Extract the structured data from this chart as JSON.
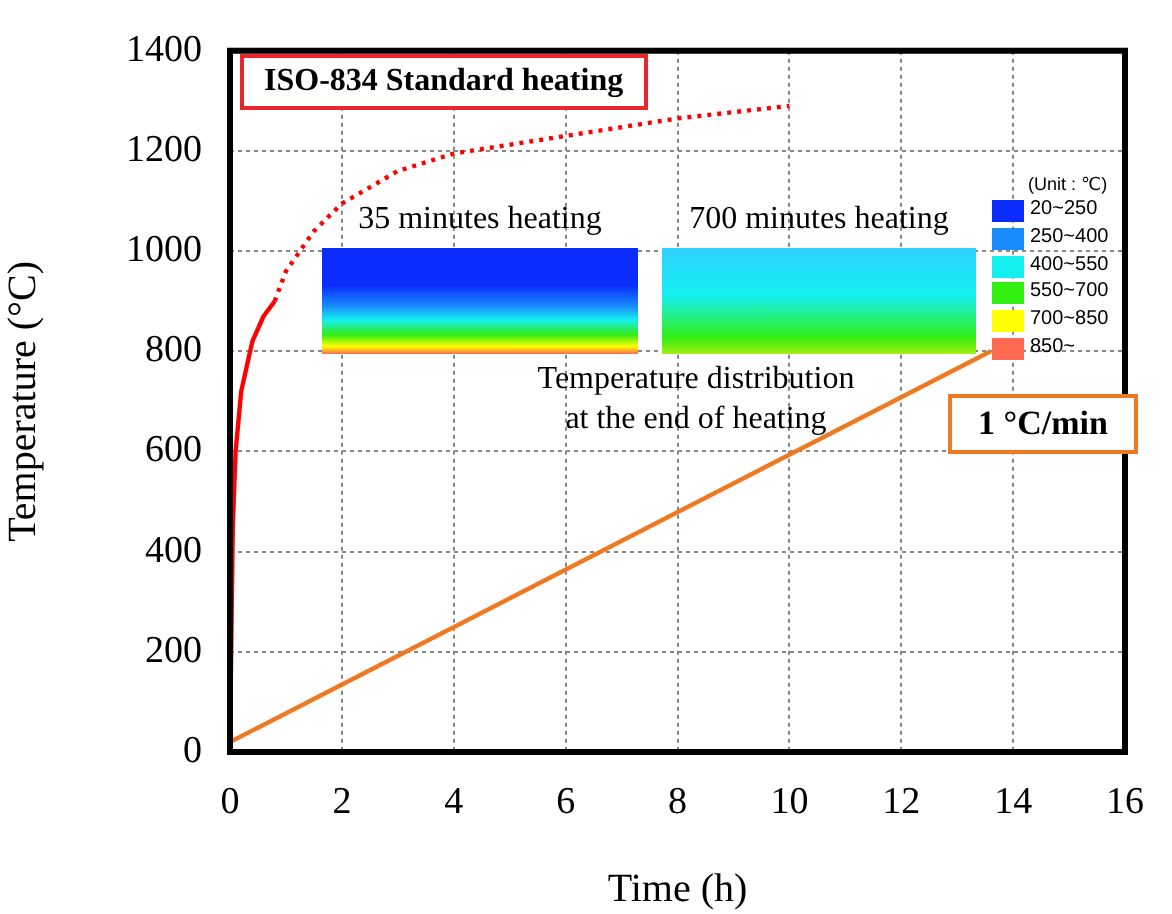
{
  "chart_data": {
    "type": "line",
    "xlabel": "Time (h)",
    "ylabel": "Temperature (°C)",
    "xlim": [
      0,
      16
    ],
    "xticks": [
      0,
      2,
      4,
      6,
      8,
      10,
      12,
      14,
      16
    ],
    "ylim": [
      0,
      1400
    ],
    "yticks": [
      0,
      200,
      400,
      600,
      800,
      1000,
      1200,
      1400
    ],
    "grid": true,
    "marker": "none",
    "series": [
      {
        "color": "#ff0000",
        "line_style": "solid",
        "x": [
          0,
          0.05,
          0.1,
          0.2,
          0.4,
          0.6,
          0.8
        ],
        "values": [
          20,
          450,
          600,
          720,
          820,
          870,
          900
        ]
      },
      {
        "color": "#ff0000",
        "line_style": "dotted",
        "x": [
          0.8,
          1,
          1.5,
          2,
          3,
          4,
          6,
          8,
          10
        ],
        "values": [
          900,
          960,
          1040,
          1095,
          1160,
          1195,
          1230,
          1265,
          1290
        ]
      },
      {
        "color": "#f07820",
        "line_style": "solid",
        "x": [
          0,
          13.6
        ],
        "values": [
          20,
          800
        ]
      }
    ],
    "annotations": [
      "ISO-834 Standard heating",
      "35 minutes heating",
      "700 minutes heating",
      "Temperature distribution",
      "at the end of heating",
      "(Unit : ℃)",
      "20~250",
      "250~400",
      "400~550",
      "550~700",
      "700~850",
      "850~",
      "1 °C/min"
    ]
  }
}
